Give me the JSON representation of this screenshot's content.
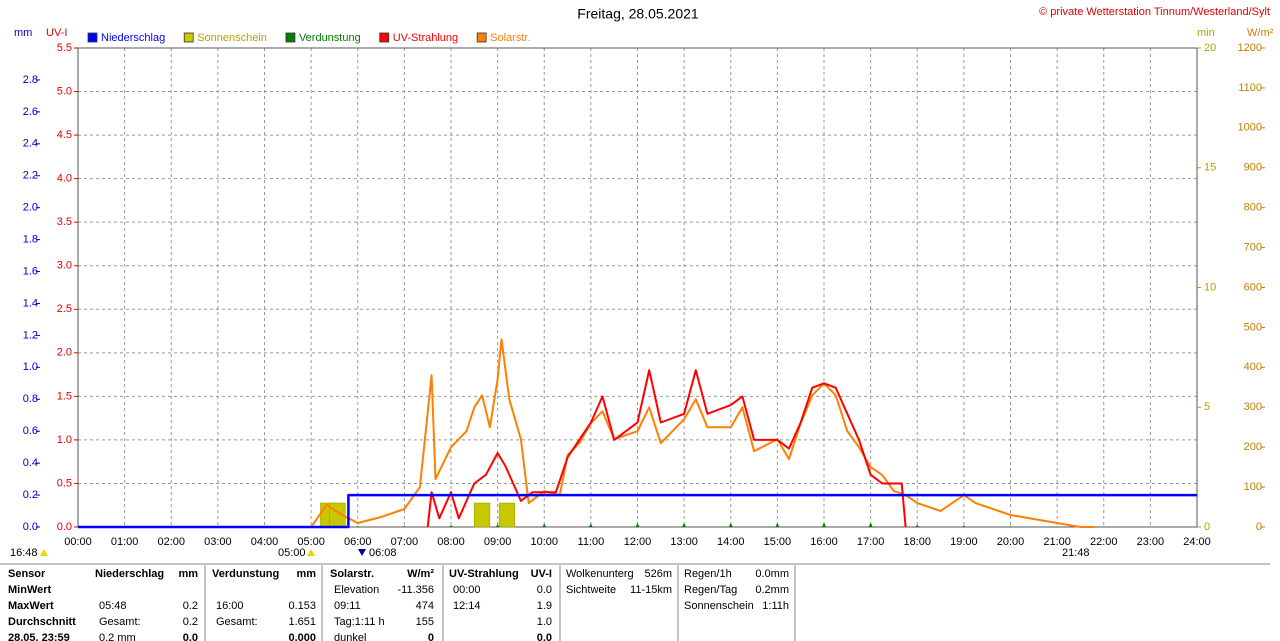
{
  "chart_data": {
    "type": "line",
    "title": "Freitag, 28.05.2021",
    "copyright": "© private Wetterstation Tinnum/Westerland/Sylt",
    "ylabel": "mm",
    "y2label": "UV-I",
    "y3label": "min",
    "y4label": "W/m²",
    "xlim": [
      "00:00",
      "24:00"
    ],
    "xticks": [
      "00:00",
      "01:00",
      "02:00",
      "03:00",
      "04:00",
      "05:00",
      "06:00",
      "07:00",
      "08:00",
      "09:00",
      "10:00",
      "11:00",
      "12:00",
      "13:00",
      "14:00",
      "15:00",
      "16:00",
      "17:00",
      "18:00",
      "19:00",
      "20:00",
      "21:00",
      "22:00",
      "23:00",
      "24:00"
    ],
    "ylim": [
      0,
      3.0
    ],
    "yticks": [
      {
        "value": 0,
        "label": "0.0"
      },
      0.2,
      0.4,
      0.6,
      0.8,
      {
        "value": 1,
        "label": "1.0"
      },
      1.2,
      1.4,
      1.6,
      1.8,
      {
        "value": 2,
        "label": "2.0"
      },
      2.2,
      2.4,
      2.6,
      2.8
    ],
    "y2lim": [
      0,
      5.5
    ],
    "y2ticks": [
      {
        "value": 0,
        "label": "0.0"
      },
      0.5,
      {
        "value": 1,
        "label": "1.0"
      },
      1.5,
      {
        "value": 2,
        "label": "2.0"
      },
      2.5,
      {
        "value": 3,
        "label": "3.0"
      },
      3.5,
      {
        "value": 4,
        "label": "4.0"
      },
      4.5,
      {
        "value": 5,
        "label": "5.0"
      },
      5.5
    ],
    "y3lim": [
      0,
      20
    ],
    "y3ticks": [
      0,
      5,
      10,
      15,
      20
    ],
    "y4lim": [
      0,
      1200
    ],
    "y4ticks": [
      0,
      100,
      200,
      300,
      400,
      500,
      600,
      700,
      800,
      900,
      1000,
      1100,
      1200
    ],
    "grid": true,
    "series": [
      {
        "name": "Niederschlag",
        "color": "#0000ff",
        "type": "line",
        "axis": "y",
        "x": [
          "00:00",
          "05:48",
          "05:48",
          "24:00"
        ],
        "values": [
          0,
          0,
          0.2,
          0.2
        ]
      },
      {
        "name": "Sonnenschein",
        "color": "#c8c800",
        "type": "bar",
        "axis": "y3",
        "x": [
          "05:12",
          "05:24",
          "08:30",
          "09:02"
        ],
        "values": [
          1,
          1,
          1,
          1
        ]
      },
      {
        "name": "Verdunstung",
        "color": "#008000",
        "type": "spike",
        "axis": "y",
        "x": [
          "01:00",
          "02:00",
          "03:00",
          "04:00",
          "05:00",
          "06:00",
          "07:00",
          "08:00",
          "09:00",
          "10:00",
          "11:00",
          "12:00",
          "13:00",
          "14:00",
          "15:00",
          "16:00",
          "17:00",
          "18:00",
          "19:00",
          "20:00",
          "21:00",
          "22:00",
          "23:00"
        ],
        "values": [
          0.004,
          0.004,
          0.004,
          0.004,
          0.004,
          0.006,
          0.008,
          0.012,
          0.016,
          0.02,
          0.022,
          0.026,
          0.026,
          0.026,
          0.026,
          0.03,
          0.03,
          0.014,
          0.01,
          0.006,
          0.005,
          0.004,
          0.004
        ]
      },
      {
        "name": "UV-Strahlung",
        "color": "#ff0000",
        "type": "line",
        "axis": "y2",
        "x": [
          "07:30",
          "07:35",
          "07:45",
          "08:00",
          "08:10",
          "08:20",
          "08:30",
          "08:45",
          "09:00",
          "09:10",
          "09:20",
          "09:30",
          "09:45",
          "10:00",
          "10:15",
          "10:30",
          "10:45",
          "11:00",
          "11:15",
          "11:30",
          "12:00",
          "12:15",
          "12:30",
          "13:00",
          "13:15",
          "13:30",
          "14:00",
          "14:15",
          "14:30",
          "15:00",
          "15:15",
          "15:30",
          "15:45",
          "16:00",
          "16:15",
          "16:30",
          "16:45",
          "17:00",
          "17:15",
          "17:40",
          "17:45"
        ],
        "values": [
          0,
          0.4,
          0.1,
          0.4,
          0.1,
          0.3,
          0.5,
          0.6,
          0.85,
          0.7,
          0.5,
          0.3,
          0.4,
          0.4,
          0.4,
          0.8,
          1.0,
          1.2,
          1.5,
          1.0,
          1.2,
          1.8,
          1.2,
          1.3,
          1.8,
          1.3,
          1.4,
          1.5,
          1.0,
          1.0,
          0.9,
          1.2,
          1.6,
          1.65,
          1.6,
          1.3,
          1.0,
          0.6,
          0.5,
          0.5,
          0
        ]
      },
      {
        "name": "Solarstr.",
        "color": "#ff8000",
        "type": "line",
        "axis": "y4",
        "x": [
          "05:00",
          "05:20",
          "05:40",
          "06:00",
          "06:30",
          "07:00",
          "07:20",
          "07:35",
          "07:40",
          "08:00",
          "08:20",
          "08:30",
          "08:40",
          "08:50",
          "09:00",
          "09:05",
          "09:15",
          "09:30",
          "09:40",
          "10:00",
          "10:20",
          "10:30",
          "10:45",
          "11:00",
          "11:15",
          "11:30",
          "12:00",
          "12:15",
          "12:30",
          "13:00",
          "13:15",
          "13:30",
          "14:00",
          "14:15",
          "14:30",
          "15:00",
          "15:15",
          "15:30",
          "15:45",
          "16:00",
          "16:15",
          "16:30",
          "16:45",
          "17:00",
          "17:15",
          "17:30",
          "17:45",
          "18:00",
          "18:30",
          "19:00",
          "19:15",
          "19:30",
          "20:00",
          "20:30",
          "21:00",
          "21:30",
          "21:48"
        ],
        "values": [
          0,
          55,
          30,
          10,
          25,
          45,
          100,
          380,
          120,
          200,
          240,
          300,
          330,
          250,
          370,
          470,
          320,
          220,
          60,
          90,
          80,
          180,
          210,
          260,
          290,
          220,
          240,
          300,
          210,
          270,
          320,
          250,
          250,
          300,
          190,
          220,
          170,
          260,
          330,
          360,
          330,
          240,
          200,
          150,
          130,
          90,
          80,
          60,
          40,
          80,
          60,
          50,
          30,
          20,
          10,
          0,
          0
        ]
      }
    ]
  },
  "sun_marks": [
    "16:48",
    "05:00",
    "06:08",
    "21:48"
  ],
  "info": {
    "row_labels": [
      "Sensor",
      "MinWert",
      "MaxWert",
      "Durchschnitt",
      "28.05. 23:59"
    ],
    "niederschlag": {
      "title": "Niederschlag",
      "unit": "mm",
      "max": [
        "05:48",
        "0.2"
      ],
      "avg": [
        "Gesamt:",
        "0.2"
      ],
      "last": [
        "0.2 mm",
        "0.0"
      ]
    },
    "verdunstung": {
      "title": "Verdunstung",
      "unit": "mm",
      "max": [
        "16:00",
        "0.153"
      ],
      "avg": [
        "Gesamt:",
        "1.651"
      ],
      "last": [
        "0.000"
      ]
    },
    "solar": {
      "title": "Solarstr.",
      "unit": "W/m²",
      "min": [
        "Elevation",
        "-11.356"
      ],
      "max": [
        "09:11",
        "474"
      ],
      "avg": [
        "Tag:1:11 h",
        "155"
      ],
      "last": [
        "dunkel",
        "0"
      ]
    },
    "uv": {
      "title": "UV-Strahlung",
      "unit": "UV-I",
      "min": [
        "00:00",
        "0.0"
      ],
      "max": [
        "12:14",
        "1.9"
      ],
      "avg": [
        "1.0"
      ],
      "last": [
        "0.0"
      ]
    },
    "weather": [
      [
        "Wolkenunterg",
        "526m"
      ],
      [
        "Sichtweite",
        "11-15km"
      ]
    ],
    "rain": [
      [
        "Regen/1h",
        "0.0mm"
      ],
      [
        "Regen/Tag",
        "0.2mm"
      ],
      [
        "Sonnenschein",
        "1:11h"
      ]
    ]
  }
}
